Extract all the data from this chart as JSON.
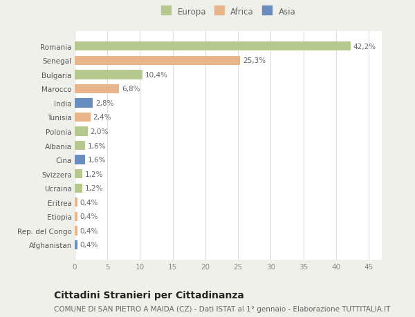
{
  "categories": [
    "Romania",
    "Senegal",
    "Bulgaria",
    "Marocco",
    "India",
    "Tunisia",
    "Polonia",
    "Albania",
    "Cina",
    "Svizzera",
    "Ucraina",
    "Eritrea",
    "Etiopia",
    "Rep. del Congo",
    "Afghanistan"
  ],
  "values": [
    42.2,
    25.3,
    10.4,
    6.8,
    2.8,
    2.4,
    2.0,
    1.6,
    1.6,
    1.2,
    1.2,
    0.4,
    0.4,
    0.4,
    0.4
  ],
  "labels": [
    "42,2%",
    "25,3%",
    "10,4%",
    "6,8%",
    "2,8%",
    "2,4%",
    "2,0%",
    "1,6%",
    "1,6%",
    "1,2%",
    "1,2%",
    "0,4%",
    "0,4%",
    "0,4%",
    "0,4%"
  ],
  "colors": [
    "#b5c98e",
    "#e8b48a",
    "#b5c98e",
    "#e8b48a",
    "#6a8dbf",
    "#e8b48a",
    "#b5c98e",
    "#b5c98e",
    "#6a8dbf",
    "#b5c98e",
    "#b5c98e",
    "#e8b48a",
    "#e8b48a",
    "#e8b48a",
    "#6a8dbf"
  ],
  "legend": [
    {
      "label": "Europa",
      "color": "#b5c98e"
    },
    {
      "label": "Africa",
      "color": "#e8b48a"
    },
    {
      "label": "Asia",
      "color": "#6a8dbf"
    }
  ],
  "xlim": [
    0,
    47
  ],
  "xticks": [
    0,
    5,
    10,
    15,
    20,
    25,
    30,
    35,
    40,
    45
  ],
  "title": "Cittadini Stranieri per Cittadinanza",
  "subtitle": "COMUNE DI SAN PIETRO A MAIDA (CZ) - Dati ISTAT al 1° gennaio - Elaborazione TUTTITALIA.IT",
  "fig_background": "#f0f0eb",
  "plot_background": "#ffffff",
  "bar_height": 0.65,
  "grid_color": "#dddddd",
  "label_fontsize": 7.5,
  "tick_fontsize": 7.5,
  "title_fontsize": 10,
  "subtitle_fontsize": 7.5
}
